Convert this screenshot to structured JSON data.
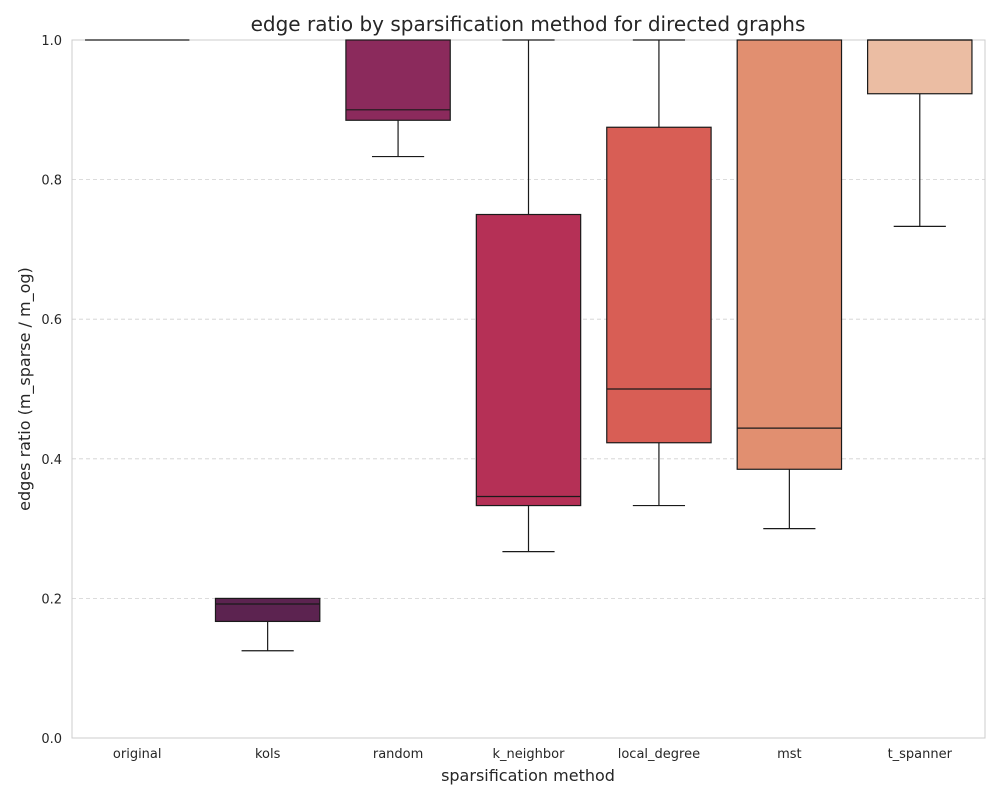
{
  "chart_data": {
    "type": "box",
    "title": "edge ratio by sparsification method for directed graphs",
    "xlabel": "sparsification method",
    "ylabel": "edges ratio (m_sparse / m_og)",
    "ylim": [
      0,
      1.0
    ],
    "y_ticks": [
      "0.0",
      "0.2",
      "0.4",
      "0.6",
      "0.8",
      "1.0"
    ],
    "y_tick_values": [
      0,
      0.2,
      0.4,
      0.6,
      0.8,
      1.0
    ],
    "grid": "y-dashed",
    "categories": [
      "original",
      "kols",
      "random",
      "k_neighbor",
      "local_degree",
      "mst",
      "t_spanner"
    ],
    "boxes": [
      {
        "category": "original",
        "whisker_low": 1.0,
        "q1": 1.0,
        "median": 1.0,
        "q3": 1.0,
        "whisker_high": 1.0
      },
      {
        "category": "kols",
        "whisker_low": 0.125,
        "q1": 0.167,
        "median": 0.192,
        "q3": 0.2,
        "whisker_high": 0.2
      },
      {
        "category": "random",
        "whisker_low": 0.833,
        "q1": 0.885,
        "median": 0.9,
        "q3": 1.0,
        "whisker_high": 1.0
      },
      {
        "category": "k_neighbor",
        "whisker_low": 0.267,
        "q1": 0.333,
        "median": 0.346,
        "q3": 0.75,
        "whisker_high": 1.0
      },
      {
        "category": "local_degree",
        "whisker_low": 0.333,
        "q1": 0.423,
        "median": 0.5,
        "q3": 0.875,
        "whisker_high": 1.0
      },
      {
        "category": "mst",
        "whisker_low": 0.3,
        "q1": 0.385,
        "median": 0.444,
        "q3": 1.0,
        "whisker_high": 1.0
      },
      {
        "category": "t_spanner",
        "whisker_low": 0.733,
        "q1": 0.923,
        "median": 1.0,
        "q3": 1.0,
        "whisker_high": 1.0
      }
    ],
    "colors": [
      "#2a1a3e",
      "#5c2350",
      "#8b2a5c",
      "#b53056",
      "#d85e55",
      "#e18f70",
      "#ebbda3"
    ]
  }
}
